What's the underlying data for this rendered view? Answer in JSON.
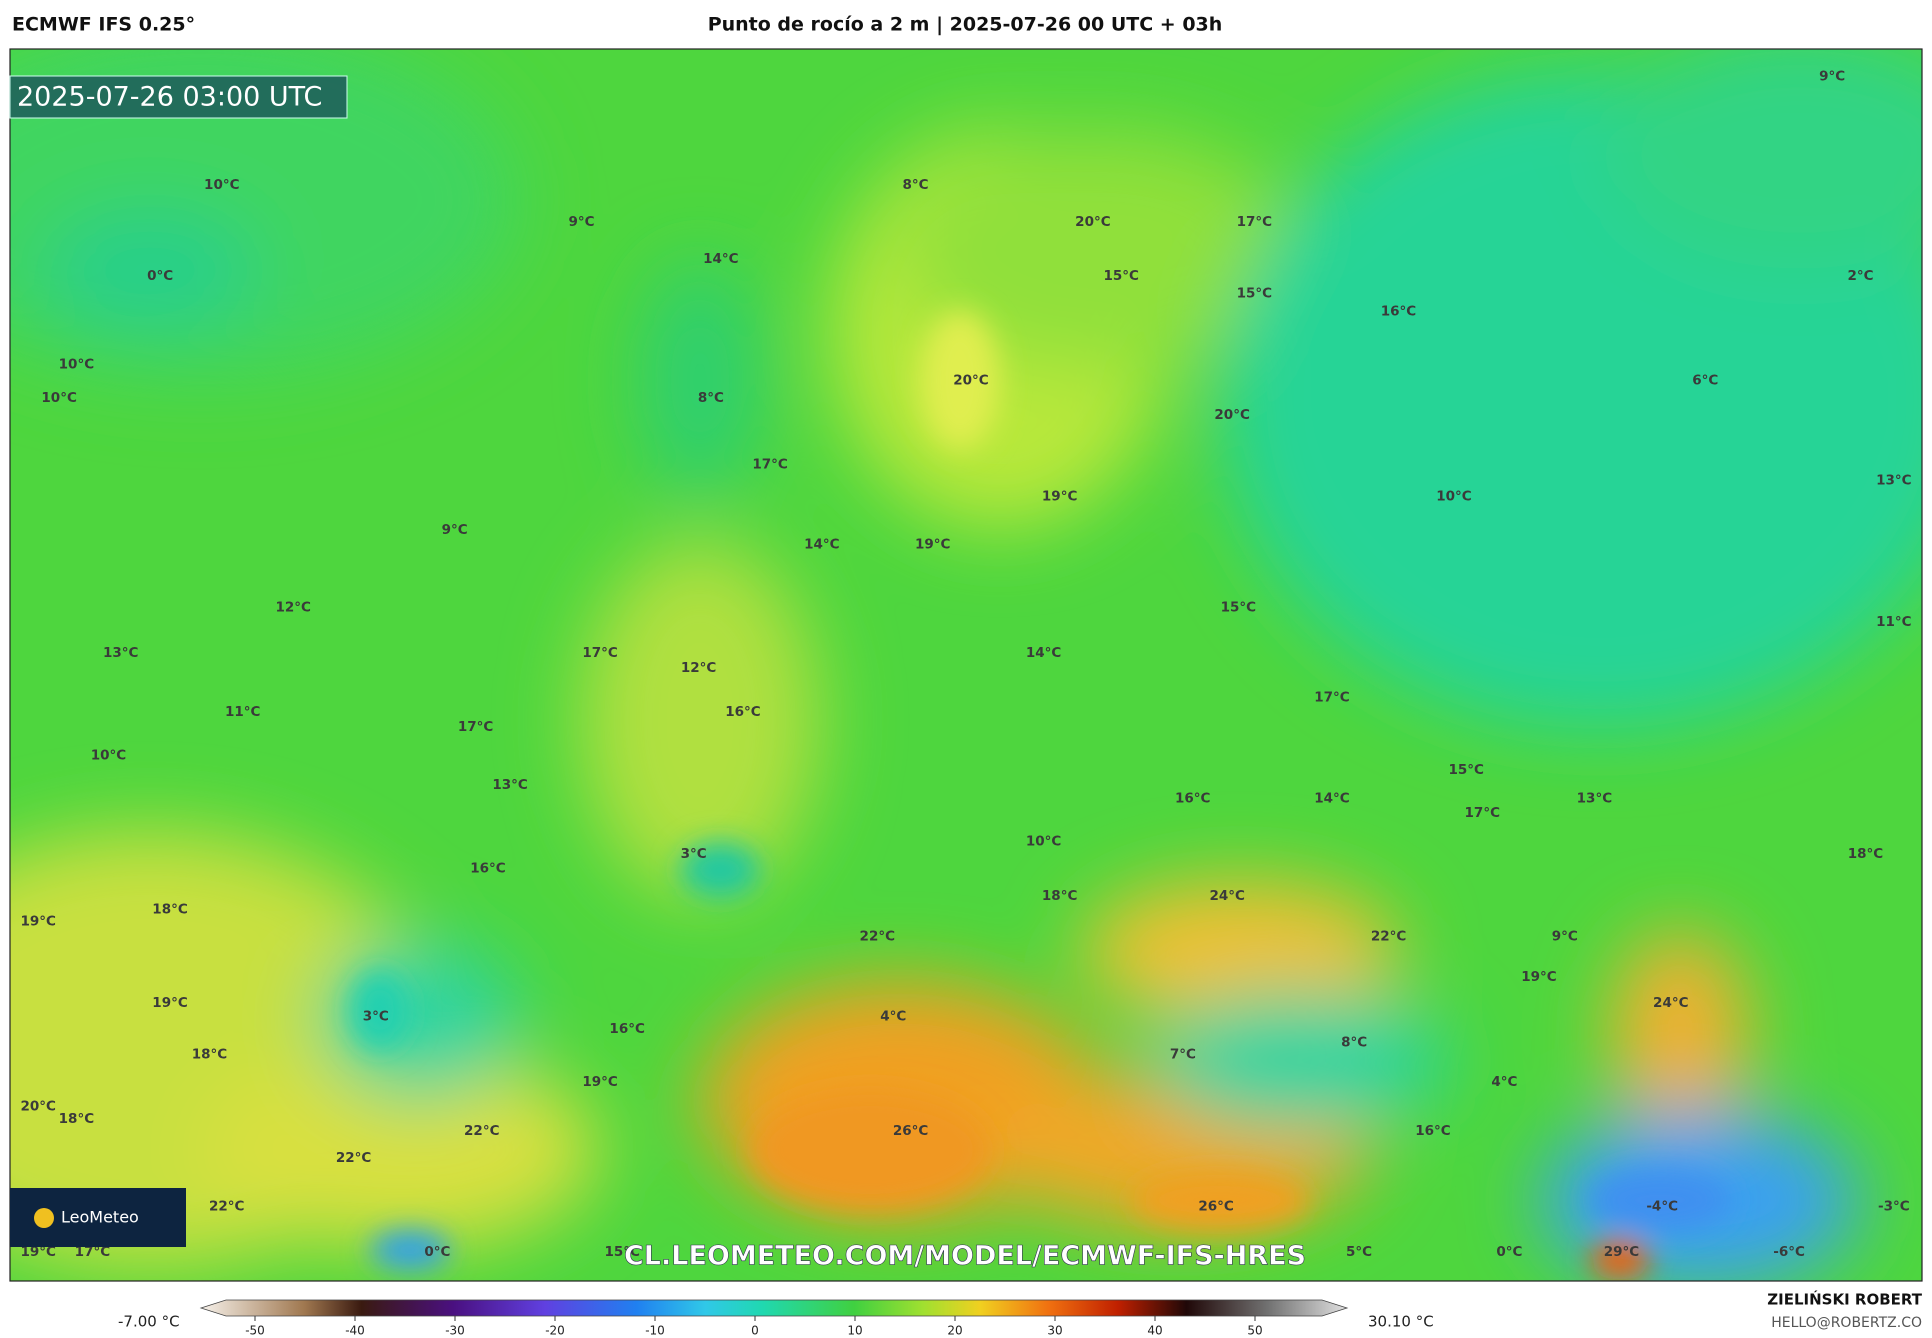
{
  "header": {
    "model": "ECMWF IFS 0.25°",
    "title": "Punto de rocío a 2 m | 2025-07-26 00 UTC + 03h"
  },
  "timestamp": "2025-07-26 03:00 UTC",
  "logo": "LeoMeteo",
  "watermark": "CL.LEOMETEO.COM/MODEL/ECMWF-IFS-HRES",
  "labels": [
    "10°C",
    "9°C",
    "8°C",
    "0°C",
    "14°C",
    "20°C",
    "17°C",
    "15°C",
    "15°C",
    "16°C",
    "9°C",
    "2°C",
    "10°C",
    "10°C",
    "8°C",
    "20°C",
    "20°C",
    "6°C",
    "17°C",
    "19°C",
    "10°C",
    "13°C",
    "9°C",
    "14°C",
    "19°C",
    "12°C",
    "15°C",
    "11°C",
    "13°C",
    "17°C",
    "14°C",
    "12°C",
    "16°C",
    "11°C",
    "17°C",
    "17°C",
    "10°C",
    "13°C",
    "15°C",
    "16°C",
    "14°C",
    "17°C",
    "13°C",
    "10°C",
    "3°C",
    "16°C",
    "18°C",
    "24°C",
    "18°C",
    "19°C",
    "18°C",
    "22°C",
    "22°C",
    "9°C",
    "19°C",
    "19°C",
    "3°C",
    "4°C",
    "16°C",
    "24°C",
    "18°C",
    "7°C",
    "8°C",
    "19°C",
    "4°C",
    "20°C",
    "18°C",
    "22°C",
    "26°C",
    "16°C",
    "22°C",
    "22°C",
    "26°C",
    "-4°C",
    "-3°C",
    "19°C",
    "17°C",
    "0°C",
    "15°C",
    "5°C",
    "0°C",
    "29°C",
    "-6°C"
  ],
  "colorbar": {
    "min_label": "-7.00 °C",
    "max_label": "30.10 °C",
    "ticks": [
      -50,
      -40,
      -30,
      -20,
      -10,
      0,
      10,
      20,
      30,
      40,
      50
    ]
  },
  "author": {
    "name": "ZIELIŃSKI ROBERT",
    "email": "HELLO@ROBERTZ.CO"
  }
}
